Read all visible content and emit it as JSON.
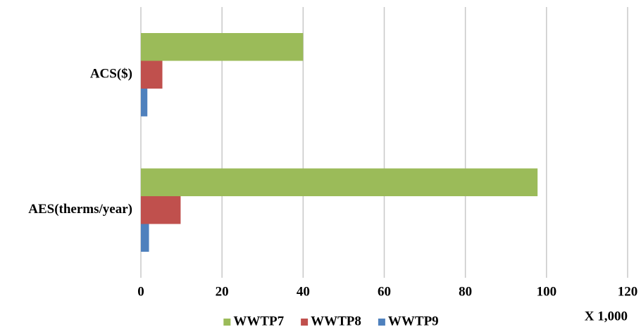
{
  "chart_data": {
    "type": "bar",
    "orientation": "horizontal",
    "categories": [
      "ACS($)",
      "AES(therms/year)"
    ],
    "series": [
      {
        "name": "WWTP7",
        "color": "#9bbb59",
        "values": [
          40,
          97.8
        ]
      },
      {
        "name": "WWTP8",
        "color": "#c0504d",
        "values": [
          5.3,
          9.8
        ]
      },
      {
        "name": "WWTP9",
        "color": "#4f81bd",
        "values": [
          1.6,
          2.0
        ]
      }
    ],
    "xlim": [
      0,
      120
    ],
    "xticks": [
      0,
      20,
      40,
      60,
      80,
      100,
      120
    ],
    "grid": true,
    "legend": "bottom",
    "annotation": "X 1,000"
  }
}
